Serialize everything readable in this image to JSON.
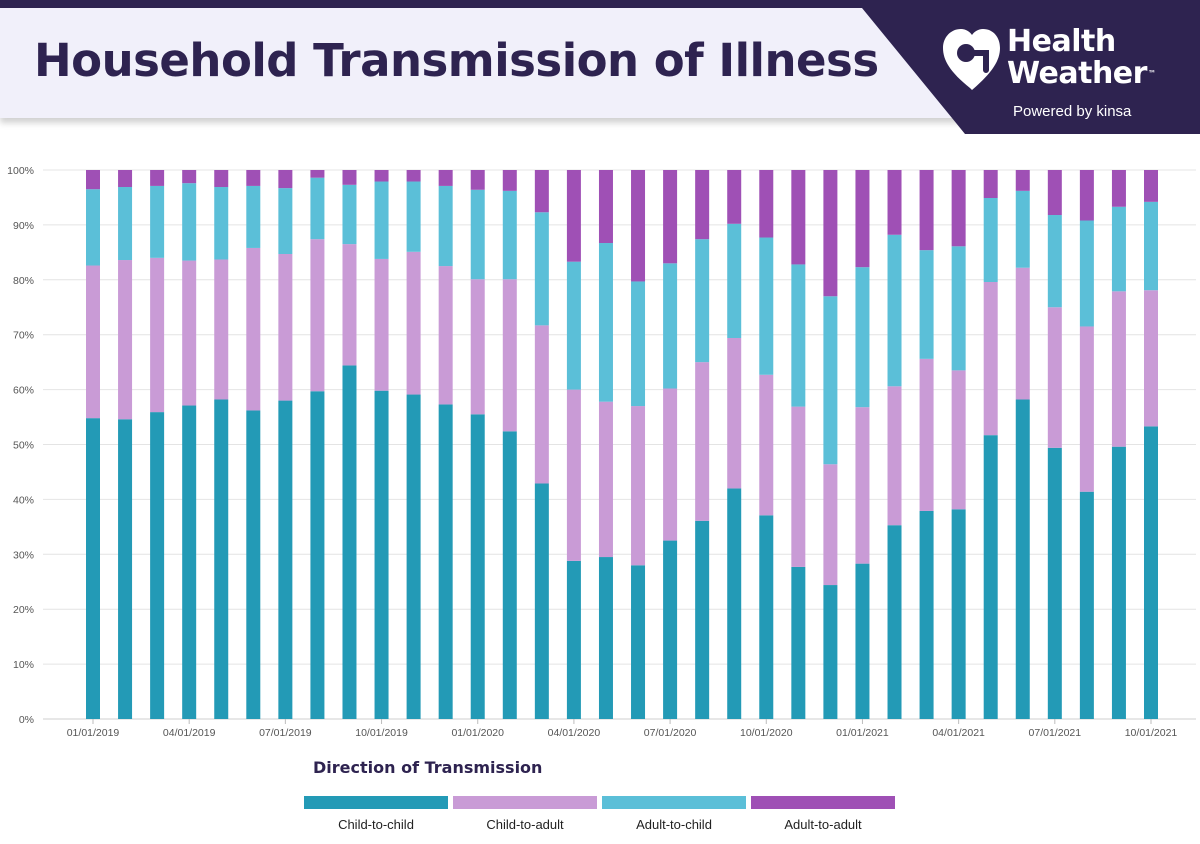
{
  "header": {
    "title": "Household Transmission of Illness",
    "brand_line1": "Health",
    "brand_line2": "Weather",
    "trademark": "™",
    "tagline": "Powered by kinsa"
  },
  "colors": {
    "title_text": "#2e2350",
    "brand_panel": "#2e2350",
    "title_band": "#f1f0fa"
  },
  "icons": {
    "brand_logo": "heart-weather-logo-icon"
  },
  "chart_data": {
    "type": "bar",
    "stacked": true,
    "title": "Household Transmission of Illness",
    "xlabel": "",
    "ylabel": "",
    "ylim": [
      0,
      100
    ],
    "y_ticks": [
      "0%",
      "10%",
      "20%",
      "30%",
      "40%",
      "50%",
      "60%",
      "70%",
      "80%",
      "90%",
      "100%"
    ],
    "x_tick_labels": [
      {
        "index": 0,
        "label": "01/01/2019"
      },
      {
        "index": 3,
        "label": "04/01/2019"
      },
      {
        "index": 6,
        "label": "07/01/2019"
      },
      {
        "index": 9,
        "label": "10/01/2019"
      },
      {
        "index": 12,
        "label": "01/01/2020"
      },
      {
        "index": 15,
        "label": "04/01/2020"
      },
      {
        "index": 18,
        "label": "07/01/2020"
      },
      {
        "index": 21,
        "label": "10/01/2020"
      },
      {
        "index": 24,
        "label": "01/01/2021"
      },
      {
        "index": 27,
        "label": "04/01/2021"
      },
      {
        "index": 30,
        "label": "07/01/2021"
      },
      {
        "index": 33,
        "label": "10/01/2021"
      }
    ],
    "categories": [
      "01/2019",
      "02/2019",
      "03/2019",
      "04/2019",
      "05/2019",
      "06/2019",
      "07/2019",
      "08/2019",
      "09/2019",
      "10/2019",
      "11/2019",
      "12/2019",
      "01/2020",
      "02/2020",
      "03/2020",
      "04/2020",
      "05/2020",
      "06/2020",
      "07/2020",
      "08/2020",
      "09/2020",
      "10/2020",
      "11/2020",
      "12/2020",
      "01/2021",
      "02/2021",
      "03/2021",
      "04/2021",
      "05/2021",
      "06/2021",
      "07/2021",
      "08/2021",
      "09/2021",
      "10/2021"
    ],
    "legend_title": "Direction of Transmission",
    "legend_position": "bottom",
    "series": [
      {
        "name": "Child-to-child",
        "color": "#239ab6",
        "values": [
          54.8,
          54.6,
          55.9,
          57.1,
          58.2,
          56.2,
          58.0,
          59.7,
          64.4,
          59.8,
          59.1,
          57.3,
          55.5,
          52.4,
          42.9,
          28.8,
          29.5,
          28.0,
          32.5,
          36.1,
          42.0,
          37.1,
          27.7,
          24.4,
          28.3,
          35.3,
          37.9,
          38.2,
          51.7,
          58.2,
          49.4,
          41.4,
          49.6,
          53.3
        ]
      },
      {
        "name": "Child-to-adult",
        "color": "#c99bd6",
        "values": [
          27.8,
          29.0,
          28.1,
          26.4,
          25.5,
          29.6,
          26.7,
          27.7,
          22.1,
          24.0,
          26.0,
          25.2,
          24.6,
          27.7,
          28.8,
          31.2,
          28.3,
          29.0,
          27.7,
          28.9,
          27.4,
          25.6,
          29.2,
          22.0,
          28.5,
          25.3,
          27.7,
          25.3,
          27.9,
          24.0,
          25.6,
          30.1,
          28.3,
          24.8
        ]
      },
      {
        "name": "Adult-to-child",
        "color": "#5bbfd8",
        "values": [
          13.9,
          13.3,
          13.1,
          14.1,
          13.2,
          11.3,
          12.0,
          11.2,
          10.8,
          14.1,
          12.8,
          14.6,
          16.3,
          16.1,
          20.6,
          23.3,
          28.9,
          22.7,
          22.8,
          22.4,
          20.8,
          25.0,
          25.9,
          30.6,
          25.5,
          27.6,
          19.8,
          22.6,
          15.3,
          14.0,
          16.8,
          19.3,
          15.4,
          16.1
        ]
      },
      {
        "name": "Adult-to-adult",
        "color": "#9f50b5",
        "values": [
          3.5,
          3.1,
          2.9,
          2.4,
          3.1,
          2.9,
          3.3,
          1.4,
          2.7,
          2.1,
          2.1,
          2.9,
          3.6,
          3.8,
          7.7,
          16.7,
          13.3,
          20.3,
          17.0,
          12.6,
          9.8,
          12.3,
          17.2,
          23.0,
          17.7,
          11.8,
          14.6,
          13.9,
          5.1,
          3.8,
          8.2,
          9.2,
          6.7,
          5.8
        ]
      }
    ],
    "grid": true
  }
}
